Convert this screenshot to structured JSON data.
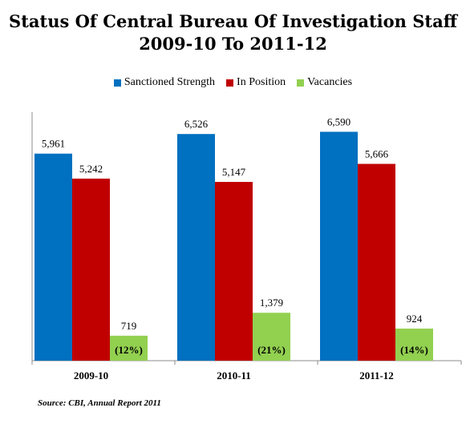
{
  "chart_data": {
    "type": "bar",
    "title_line1": "Status Of Central Bureau Of Investigation Staff",
    "title_line2": "2009-10 To 2011-12",
    "categories": [
      "2009-10",
      "2010-11",
      "2011-12"
    ],
    "series": [
      {
        "name": "Sanctioned Strength",
        "color": "#0070C0",
        "values": [
          5961,
          6526,
          6590
        ],
        "labels": [
          "5,961",
          "6,526",
          "6,590"
        ]
      },
      {
        "name": "In Position",
        "color": "#C00000",
        "values": [
          5242,
          5147,
          5666
        ],
        "labels": [
          "5,242",
          "5,147",
          "5,666"
        ]
      },
      {
        "name": "Vacancies",
        "color": "#92D050",
        "values": [
          719,
          1379,
          924
        ],
        "labels": [
          "719",
          "1,379",
          "924"
        ],
        "inner_labels": [
          "(12%)",
          "(21%)",
          "(14%)"
        ]
      }
    ],
    "ylim": [
      0,
      7500
    ],
    "legend_position": "top",
    "grid": false
  },
  "source": "Source: CBI, Annual Report 2011"
}
